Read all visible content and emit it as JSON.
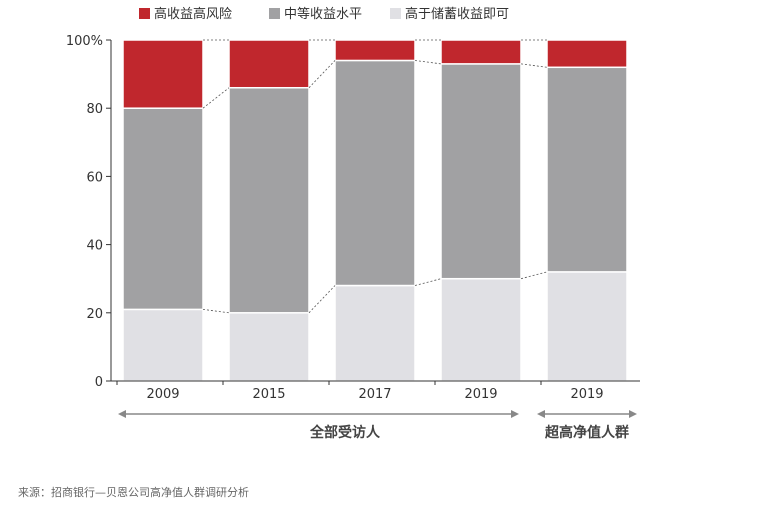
{
  "chart_data": {
    "type": "bar",
    "stacked": true,
    "normalized": true,
    "categories": [
      "2009",
      "2015",
      "2017",
      "2019",
      "2019"
    ],
    "series": [
      {
        "name": "高收益高风险",
        "color": "#C0272D",
        "values": [
          20,
          14,
          6,
          7,
          8
        ]
      },
      {
        "name": "中等收益水平",
        "color": "#A1A1A3",
        "values": [
          59,
          66,
          66,
          63,
          60
        ]
      },
      {
        "name": "高于储蓄收益即可",
        "color": "#E0E0E4",
        "values": [
          21,
          20,
          28,
          30,
          32
        ]
      }
    ],
    "stack_order": [
      "高于储蓄收益即可",
      "中等收益水平",
      "高收益高风险"
    ],
    "yticks": [
      "0",
      "20",
      "40",
      "60",
      "80",
      "100%"
    ],
    "ylim": [
      0,
      100
    ],
    "legend_position": "top",
    "groups": [
      {
        "label": "全部受访人",
        "categories": [
          0,
          1,
          2,
          3
        ]
      },
      {
        "label": "超高净值人群",
        "categories": [
          4
        ]
      }
    ],
    "source": "来源：招商银行—贝恩公司高净值人群调研分析"
  }
}
